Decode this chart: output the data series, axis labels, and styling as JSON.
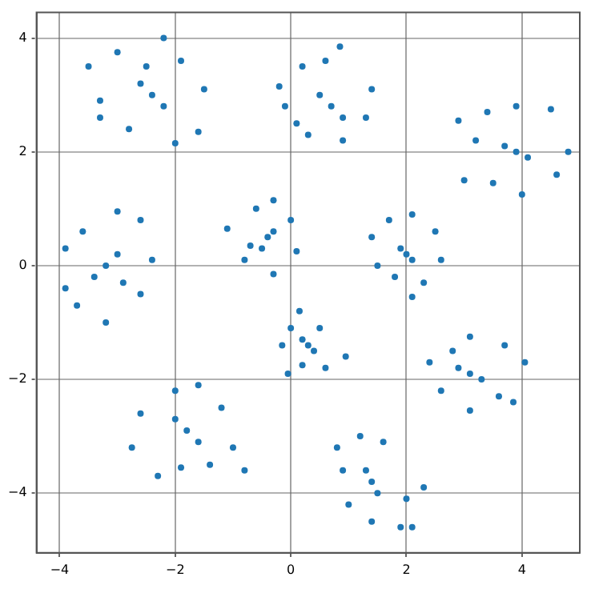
{
  "chart_data": {
    "type": "scatter",
    "xlim": [
      -4.4,
      5.0
    ],
    "ylim": [
      -5.05,
      4.45
    ],
    "xticks": [
      -4,
      -2,
      0,
      2,
      4
    ],
    "yticks": [
      -4,
      -2,
      0,
      2,
      4
    ],
    "grid": true,
    "legend": false,
    "marker": "circle",
    "series": [
      {
        "color": "#1f77b4",
        "x": [
          -2.4,
          -2.2,
          -2.6,
          -3.5,
          -2.2,
          -3.3,
          -3.0,
          -1.5,
          -1.6,
          -2.0,
          -2.8,
          -1.9,
          -3.3,
          -2.5,
          0.7,
          0.5,
          0.9,
          -0.2,
          -0.1,
          0.2,
          0.6,
          0.85,
          1.4,
          1.3,
          0.9,
          0.3,
          0.1,
          3.9,
          3.7,
          4.1,
          2.9,
          3.4,
          3.9,
          4.5,
          4.8,
          4.6,
          4.0,
          3.5,
          3.0,
          3.2,
          -3.2,
          -3.0,
          -3.4,
          -3.9,
          -3.6,
          -3.0,
          -2.6,
          -2.4,
          -2.6,
          -3.2,
          -3.7,
          -3.9,
          -2.9,
          -0.4,
          -0.5,
          -0.3,
          -1.1,
          -0.6,
          -0.3,
          0.0,
          0.1,
          -0.3,
          -0.7,
          -0.8,
          2.0,
          1.9,
          2.1,
          1.4,
          1.7,
          2.1,
          2.5,
          2.6,
          2.3,
          2.1,
          1.8,
          1.5,
          0.3,
          0.2,
          0.4,
          -0.15,
          0.0,
          0.15,
          0.5,
          0.95,
          0.6,
          0.2,
          -0.05,
          3.1,
          2.9,
          3.3,
          2.4,
          2.6,
          3.1,
          3.6,
          3.85,
          4.05,
          3.7,
          3.1,
          2.8,
          -1.8,
          -2.0,
          -1.6,
          -2.6,
          -2.75,
          -2.3,
          -1.9,
          -1.4,
          -1.0,
          -0.8,
          -1.2,
          -1.6,
          -2.0,
          1.4,
          1.3,
          1.5,
          0.8,
          1.0,
          1.4,
          1.9,
          2.1,
          2.3,
          2.0,
          1.6,
          1.2,
          0.9
        ],
        "values": [
          3.0,
          2.8,
          3.2,
          3.5,
          4.0,
          2.9,
          3.75,
          3.1,
          2.35,
          2.15,
          2.4,
          3.6,
          2.6,
          3.5,
          2.8,
          3.0,
          2.6,
          3.15,
          2.8,
          3.5,
          3.6,
          3.85,
          3.1,
          2.6,
          2.2,
          2.3,
          2.5,
          2.0,
          2.1,
          1.9,
          2.55,
          2.7,
          2.8,
          2.75,
          2.0,
          1.6,
          1.25,
          1.45,
          1.5,
          2.2,
          0.0,
          0.2,
          -0.2,
          0.3,
          0.6,
          0.95,
          0.8,
          0.1,
          -0.5,
          -1.0,
          -0.7,
          -0.4,
          -0.3,
          0.5,
          0.3,
          0.6,
          0.65,
          1.0,
          1.15,
          0.8,
          0.25,
          -0.15,
          0.35,
          0.1,
          0.2,
          0.3,
          0.1,
          0.5,
          0.8,
          0.9,
          0.6,
          0.1,
          -0.3,
          -0.55,
          -0.2,
          0.0,
          -1.4,
          -1.3,
          -1.5,
          -1.4,
          -1.1,
          -0.8,
          -1.1,
          -1.6,
          -1.8,
          -1.75,
          -1.9,
          -1.9,
          -1.8,
          -2.0,
          -1.7,
          -2.2,
          -2.55,
          -2.3,
          -2.4,
          -1.7,
          -1.4,
          -1.25,
          -1.5,
          -2.9,
          -2.7,
          -3.1,
          -2.6,
          -3.2,
          -3.7,
          -3.55,
          -3.5,
          -3.2,
          -3.6,
          -2.5,
          -2.1,
          -2.2,
          -3.8,
          -3.6,
          -4.0,
          -3.2,
          -4.2,
          -4.5,
          -4.6,
          -4.6,
          -3.9,
          -4.1,
          -3.1,
          -3.0,
          -3.6
        ]
      }
    ]
  }
}
